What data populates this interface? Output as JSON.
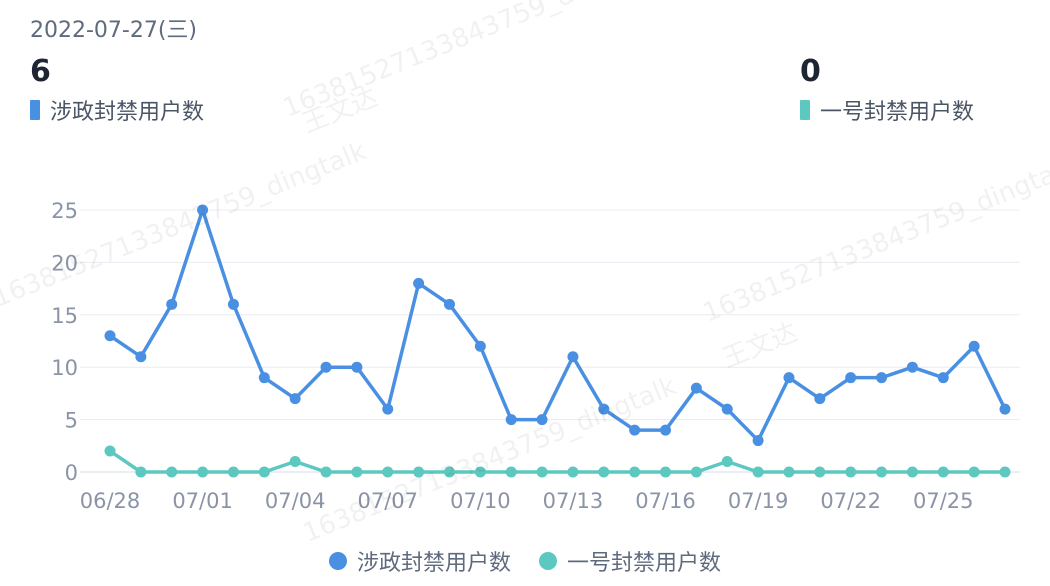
{
  "header": {
    "date": "2022-07-27(三)"
  },
  "stats": [
    {
      "value": "6",
      "label": "涉政封禁用户数",
      "color": "#4a90e2"
    },
    {
      "value": "0",
      "label": "一号封禁用户数",
      "color": "#5cc8c0"
    }
  ],
  "watermarks": [
    "16381527133843759_dingtalk",
    "王文达"
  ],
  "chart_data": {
    "type": "line",
    "x": [
      "06/28",
      "06/29",
      "06/30",
      "07/01",
      "07/02",
      "07/03",
      "07/04",
      "07/05",
      "07/06",
      "07/07",
      "07/08",
      "07/09",
      "07/10",
      "07/11",
      "07/12",
      "07/13",
      "07/14",
      "07/15",
      "07/16",
      "07/17",
      "07/18",
      "07/19",
      "07/20",
      "07/21",
      "07/22",
      "07/23",
      "07/24",
      "07/25",
      "07/26",
      "07/27"
    ],
    "tick_labels": [
      "06/28",
      "07/01",
      "07/04",
      "07/07",
      "07/10",
      "07/13",
      "07/16",
      "07/19",
      "07/22",
      "07/25"
    ],
    "y_ticks": [
      0,
      5,
      10,
      15,
      20,
      25
    ],
    "ylim": [
      0,
      25
    ],
    "grid": true,
    "legend": "bottom",
    "series": [
      {
        "name": "涉政封禁用户数",
        "color": "#4a90e2",
        "values": [
          13,
          11,
          16,
          25,
          16,
          9,
          7,
          10,
          10,
          6,
          18,
          16,
          12,
          5,
          5,
          11,
          6,
          4,
          4,
          8,
          6,
          3,
          9,
          7,
          9,
          9,
          10,
          9,
          12,
          6
        ]
      },
      {
        "name": "一号封禁用户数",
        "color": "#5cc8c0",
        "values": [
          2,
          0,
          0,
          0,
          0,
          0,
          1,
          0,
          0,
          0,
          0,
          0,
          0,
          0,
          0,
          0,
          0,
          0,
          0,
          0,
          1,
          0,
          0,
          0,
          0,
          0,
          0,
          0,
          0,
          0
        ]
      }
    ]
  }
}
